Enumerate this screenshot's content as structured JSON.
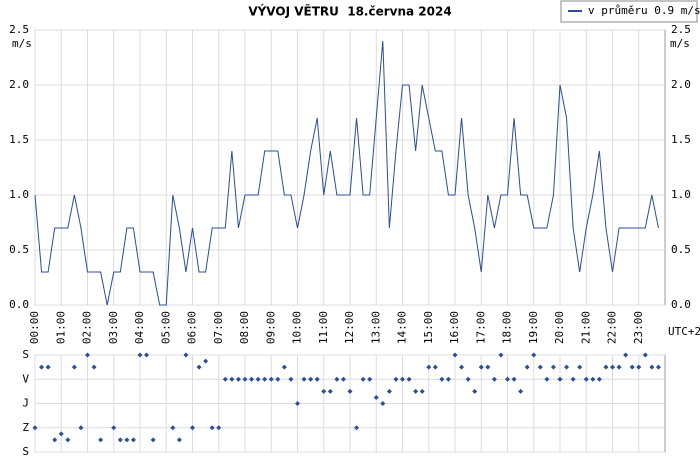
{
  "chart_data": [
    {
      "type": "line",
      "title": "VÝVOJ VĚTRU  18.června 2024",
      "y_unit": "m/s",
      "x_unit": "UTC+2",
      "x": [
        0,
        0.25,
        0.5,
        0.75,
        1,
        1.25,
        1.5,
        1.75,
        2,
        2.25,
        2.5,
        2.75,
        3,
        3.25,
        3.5,
        3.75,
        4,
        4.25,
        4.5,
        4.75,
        5,
        5.25,
        5.5,
        5.75,
        6,
        6.25,
        6.5,
        6.75,
        7,
        7.25,
        7.5,
        7.75,
        8,
        8.25,
        8.5,
        8.75,
        9,
        9.25,
        9.5,
        9.75,
        10,
        10.25,
        10.5,
        10.75,
        11,
        11.25,
        11.5,
        11.75,
        12,
        12.25,
        12.5,
        12.75,
        13,
        13.25,
        13.5,
        13.75,
        14,
        14.25,
        14.5,
        14.75,
        15,
        15.25,
        15.5,
        15.75,
        16,
        16.25,
        16.5,
        16.75,
        17,
        17.25,
        17.5,
        17.75,
        18,
        18.25,
        18.5,
        18.75,
        19,
        19.25,
        19.5,
        19.75,
        20,
        20.25,
        20.5,
        20.75,
        21,
        21.25,
        21.5,
        21.75,
        22,
        22.25,
        22.5,
        22.75,
        23,
        23.25,
        23.5,
        23.75
      ],
      "series": [
        {
          "name": "v průměru 0.9 m/s",
          "color": "#2a4d9c",
          "values": [
            1.0,
            0.3,
            0.3,
            0.7,
            0.7,
            0.7,
            1.0,
            0.7,
            0.3,
            0.3,
            0.3,
            0.0,
            0.3,
            0.3,
            0.7,
            0.7,
            0.3,
            0.3,
            0.3,
            0.0,
            0.0,
            1.0,
            0.7,
            0.3,
            0.7,
            0.3,
            0.3,
            0.7,
            0.7,
            0.7,
            1.4,
            0.7,
            1.0,
            1.0,
            1.0,
            1.4,
            1.4,
            1.4,
            1.0,
            1.0,
            0.7,
            1.0,
            1.4,
            1.7,
            1.0,
            1.4,
            1.0,
            1.0,
            1.0,
            1.7,
            1.0,
            1.0,
            1.7,
            2.4,
            0.7,
            1.4,
            2.0,
            2.0,
            1.4,
            2.0,
            1.7,
            1.4,
            1.4,
            1.0,
            1.0,
            1.7,
            1.0,
            0.7,
            0.3,
            1.0,
            0.7,
            1.0,
            1.0,
            1.7,
            1.0,
            1.0,
            0.7,
            0.7,
            0.7,
            1.0,
            2.0,
            1.7,
            0.7,
            0.3,
            0.7,
            1.0,
            1.4,
            0.7,
            0.3,
            0.7,
            0.7,
            0.7,
            0.7,
            0.7,
            1.0,
            0.7
          ]
        }
      ],
      "xlim": [
        0,
        24
      ],
      "xticks": [
        {
          "value": 0,
          "label": "00:00"
        },
        {
          "value": 1,
          "label": "01:00"
        },
        {
          "value": 2,
          "label": "02:00"
        },
        {
          "value": 3,
          "label": "03:00"
        },
        {
          "value": 4,
          "label": "04:00"
        },
        {
          "value": 5,
          "label": "05:00"
        },
        {
          "value": 6,
          "label": "06:00"
        },
        {
          "value": 7,
          "label": "07:00"
        },
        {
          "value": 8,
          "label": "08:00"
        },
        {
          "value": 9,
          "label": "09:00"
        },
        {
          "value": 10,
          "label": "10:00"
        },
        {
          "value": 11,
          "label": "11:00"
        },
        {
          "value": 12,
          "label": "12:00"
        },
        {
          "value": 13,
          "label": "13:00"
        },
        {
          "value": 14,
          "label": "14:00"
        },
        {
          "value": 15,
          "label": "15:00"
        },
        {
          "value": 16,
          "label": "16:00"
        },
        {
          "value": 17,
          "label": "17:00"
        },
        {
          "value": 18,
          "label": "18:00"
        },
        {
          "value": 19,
          "label": "19:00"
        },
        {
          "value": 20,
          "label": "20:00"
        },
        {
          "value": 21,
          "label": "21:00"
        },
        {
          "value": 22,
          "label": "22:00"
        },
        {
          "value": 23,
          "label": "23:00"
        }
      ],
      "ylim": [
        0,
        2.5
      ],
      "yticks": [
        {
          "value": 0,
          "label": "0.0"
        },
        0.5,
        {
          "value": 1,
          "label": "1.0"
        },
        1.5,
        {
          "value": 2,
          "label": "2.0"
        },
        2.5
      ],
      "grid": true
    },
    {
      "type": "scatter",
      "color": "#2a4d9c",
      "x": [
        0,
        0.25,
        0.5,
        0.75,
        1,
        1.25,
        1.5,
        1.75,
        2,
        2.25,
        2.5,
        3,
        3.25,
        3.5,
        3.75,
        4,
        4.25,
        4.5,
        5.25,
        5.5,
        5.75,
        6,
        6.25,
        6.5,
        6.75,
        7,
        7.25,
        7.5,
        7.75,
        8,
        8.25,
        8.5,
        8.75,
        9,
        9.25,
        9.5,
        9.75,
        10,
        10.25,
        10.5,
        10.75,
        11,
        11.25,
        11.5,
        11.75,
        12,
        12.25,
        12.5,
        12.75,
        13,
        13.25,
        13.5,
        13.75,
        14,
        14.25,
        14.5,
        14.75,
        15,
        15.25,
        15.5,
        15.75,
        16,
        16.25,
        16.5,
        16.75,
        17,
        17.25,
        17.5,
        17.75,
        18,
        18.25,
        18.5,
        18.75,
        19,
        19.25,
        19.5,
        19.75,
        20,
        20.25,
        20.5,
        20.75,
        21,
        21.25,
        21.5,
        21.75,
        22,
        22.25,
        22.5,
        22.75,
        23,
        23.25,
        23.5,
        23.75
      ],
      "values": [
        270,
        45,
        45,
        315,
        292.5,
        315,
        45,
        270,
        0,
        45,
        315,
        270,
        315,
        315,
        315,
        0,
        0,
        315,
        270,
        315,
        0,
        270,
        45,
        22.5,
        270,
        270,
        90,
        90,
        90,
        90,
        90,
        90,
        90,
        90,
        90,
        45,
        90,
        180,
        90,
        90,
        90,
        135,
        135,
        90,
        90,
        135,
        270,
        90,
        90,
        157.5,
        180,
        135,
        90,
        90,
        90,
        135,
        135,
        45,
        45,
        90,
        90,
        0,
        45,
        90,
        135,
        45,
        45,
        90,
        0,
        90,
        90,
        135,
        45,
        0,
        45,
        90,
        45,
        90,
        45,
        90,
        45,
        90,
        90,
        90,
        45,
        45,
        45,
        0,
        45,
        45,
        0,
        45,
        45
      ],
      "xlim": [
        0,
        24
      ],
      "ylim": [
        360,
        0
      ],
      "yticks": [
        {
          "value": 0,
          "label": "S"
        },
        {
          "value": 90,
          "label": "V"
        },
        {
          "value": 180,
          "label": "J"
        },
        {
          "value": 270,
          "label": "Z"
        },
        {
          "value": 360,
          "label": "S"
        }
      ],
      "grid": true
    }
  ]
}
